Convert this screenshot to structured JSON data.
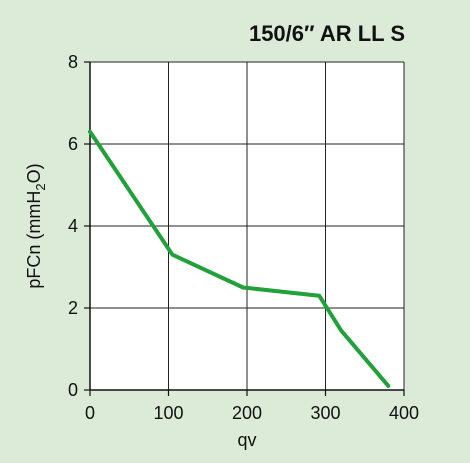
{
  "chart_data": {
    "type": "line",
    "title": "150/6″ AR LL S",
    "xlabel": "qv",
    "ylabel": {
      "prefix": "pFCn (mmH",
      "subscript": "2",
      "suffix": "O)"
    },
    "xlim": [
      0,
      400
    ],
    "ylim": [
      0,
      8
    ],
    "x_ticks": [
      0,
      100,
      200,
      300,
      400
    ],
    "y_ticks": [
      0,
      2,
      4,
      6,
      8
    ],
    "grid": true,
    "colors": {
      "background": "#dcebd8",
      "plot_area": "#ffffff",
      "series": "#22a13a",
      "grid": "#222222",
      "axis": "#111111"
    },
    "series": [
      {
        "x": [
          0,
          105,
          195,
          292,
          320,
          380
        ],
        "y": [
          6.3,
          3.3,
          2.5,
          2.3,
          1.45,
          0.1
        ]
      }
    ]
  }
}
